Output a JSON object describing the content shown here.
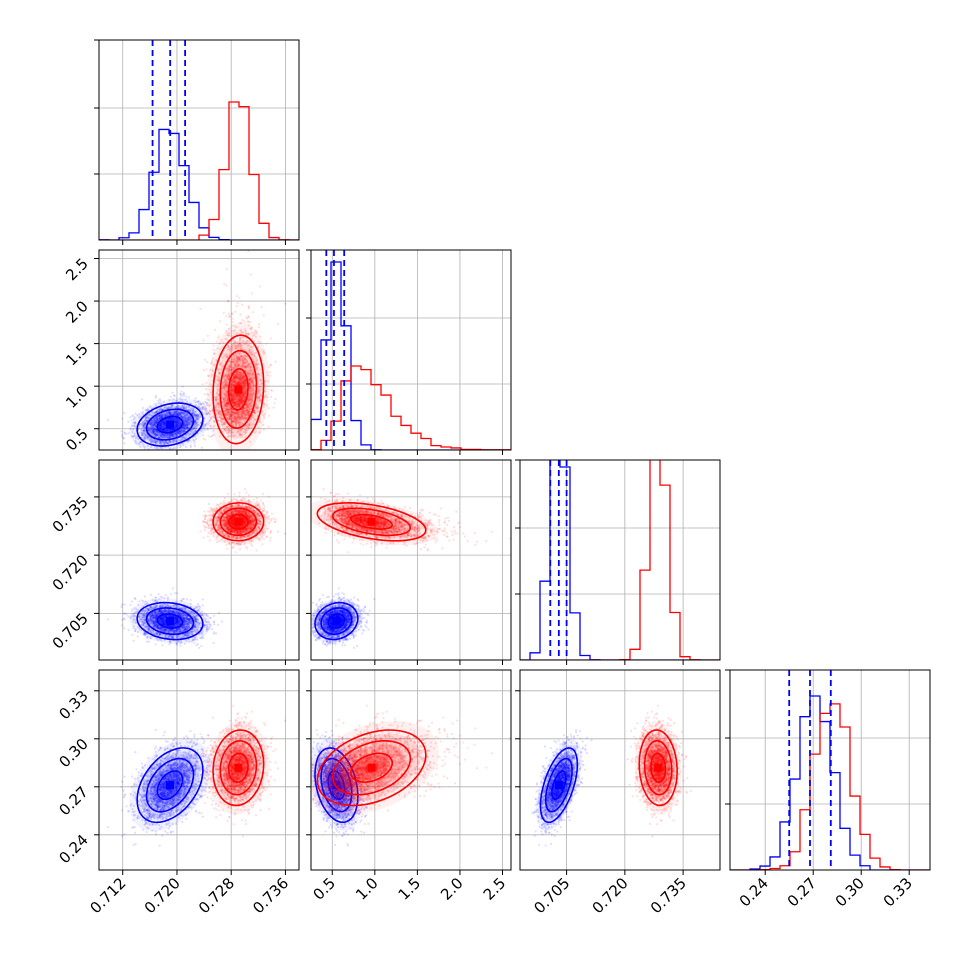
{
  "chart_data": {
    "type": "corner",
    "grid": true,
    "series": [
      {
        "color": "#0000ff",
        "means": [
          0.719,
          0.55,
          0.703,
          0.271
        ],
        "sds": [
          0.0023,
          0.12,
          0.0022,
          0.011
        ],
        "corr": [
          0.25,
          -0.15,
          0.4,
          0.15,
          -0.3,
          0.55
        ],
        "quantiles": [
          [
            0.7164,
            0.719,
            0.7212
          ],
          [
            0.43,
            0.52,
            0.64
          ],
          [
            0.7008,
            0.703,
            0.705
          ],
          [
            0.255,
            0.268,
            0.281
          ]
        ]
      },
      {
        "color": "#ff0000",
        "means": [
          0.729,
          0.95,
          0.7285,
          0.282
        ],
        "sds": [
          0.0018,
          0.3,
          0.0023,
          0.011
        ],
        "corr": [
          0.1,
          0.05,
          0.1,
          -0.45,
          0.35,
          -0.1
        ],
        "quantiles": null
      }
    ],
    "parameters": [
      {
        "ticks": [
          0.712,
          0.72,
          0.728,
          0.736
        ],
        "tick_labels": [
          "0.712",
          "0.720",
          "0.728",
          "0.736"
        ],
        "range": [
          0.7085,
          0.738
        ],
        "hist_peak_ratio": 0.69
      },
      {
        "ticks": [
          0.5,
          1.0,
          1.5,
          2.0,
          2.5
        ],
        "tick_labels": [
          "0.5",
          "1.0",
          "1.5",
          "2.0",
          "2.5"
        ],
        "range": [
          0.25,
          2.6
        ],
        "hist_peak_ratio": 0.94
      },
      {
        "ticks": [
          0.705,
          0.72,
          0.735
        ],
        "tick_labels": [
          "0.705",
          "0.720",
          "0.735"
        ],
        "range": [
          0.693,
          0.7445
        ],
        "hist_peak_ratio": 1.04
      },
      {
        "ticks": [
          0.24,
          0.27,
          0.3,
          0.33
        ],
        "tick_labels": [
          "0.24",
          "0.27",
          "0.30",
          "0.33"
        ],
        "range": [
          0.218,
          0.343
        ],
        "hist_peak_ratio": 0.87
      }
    ]
  }
}
